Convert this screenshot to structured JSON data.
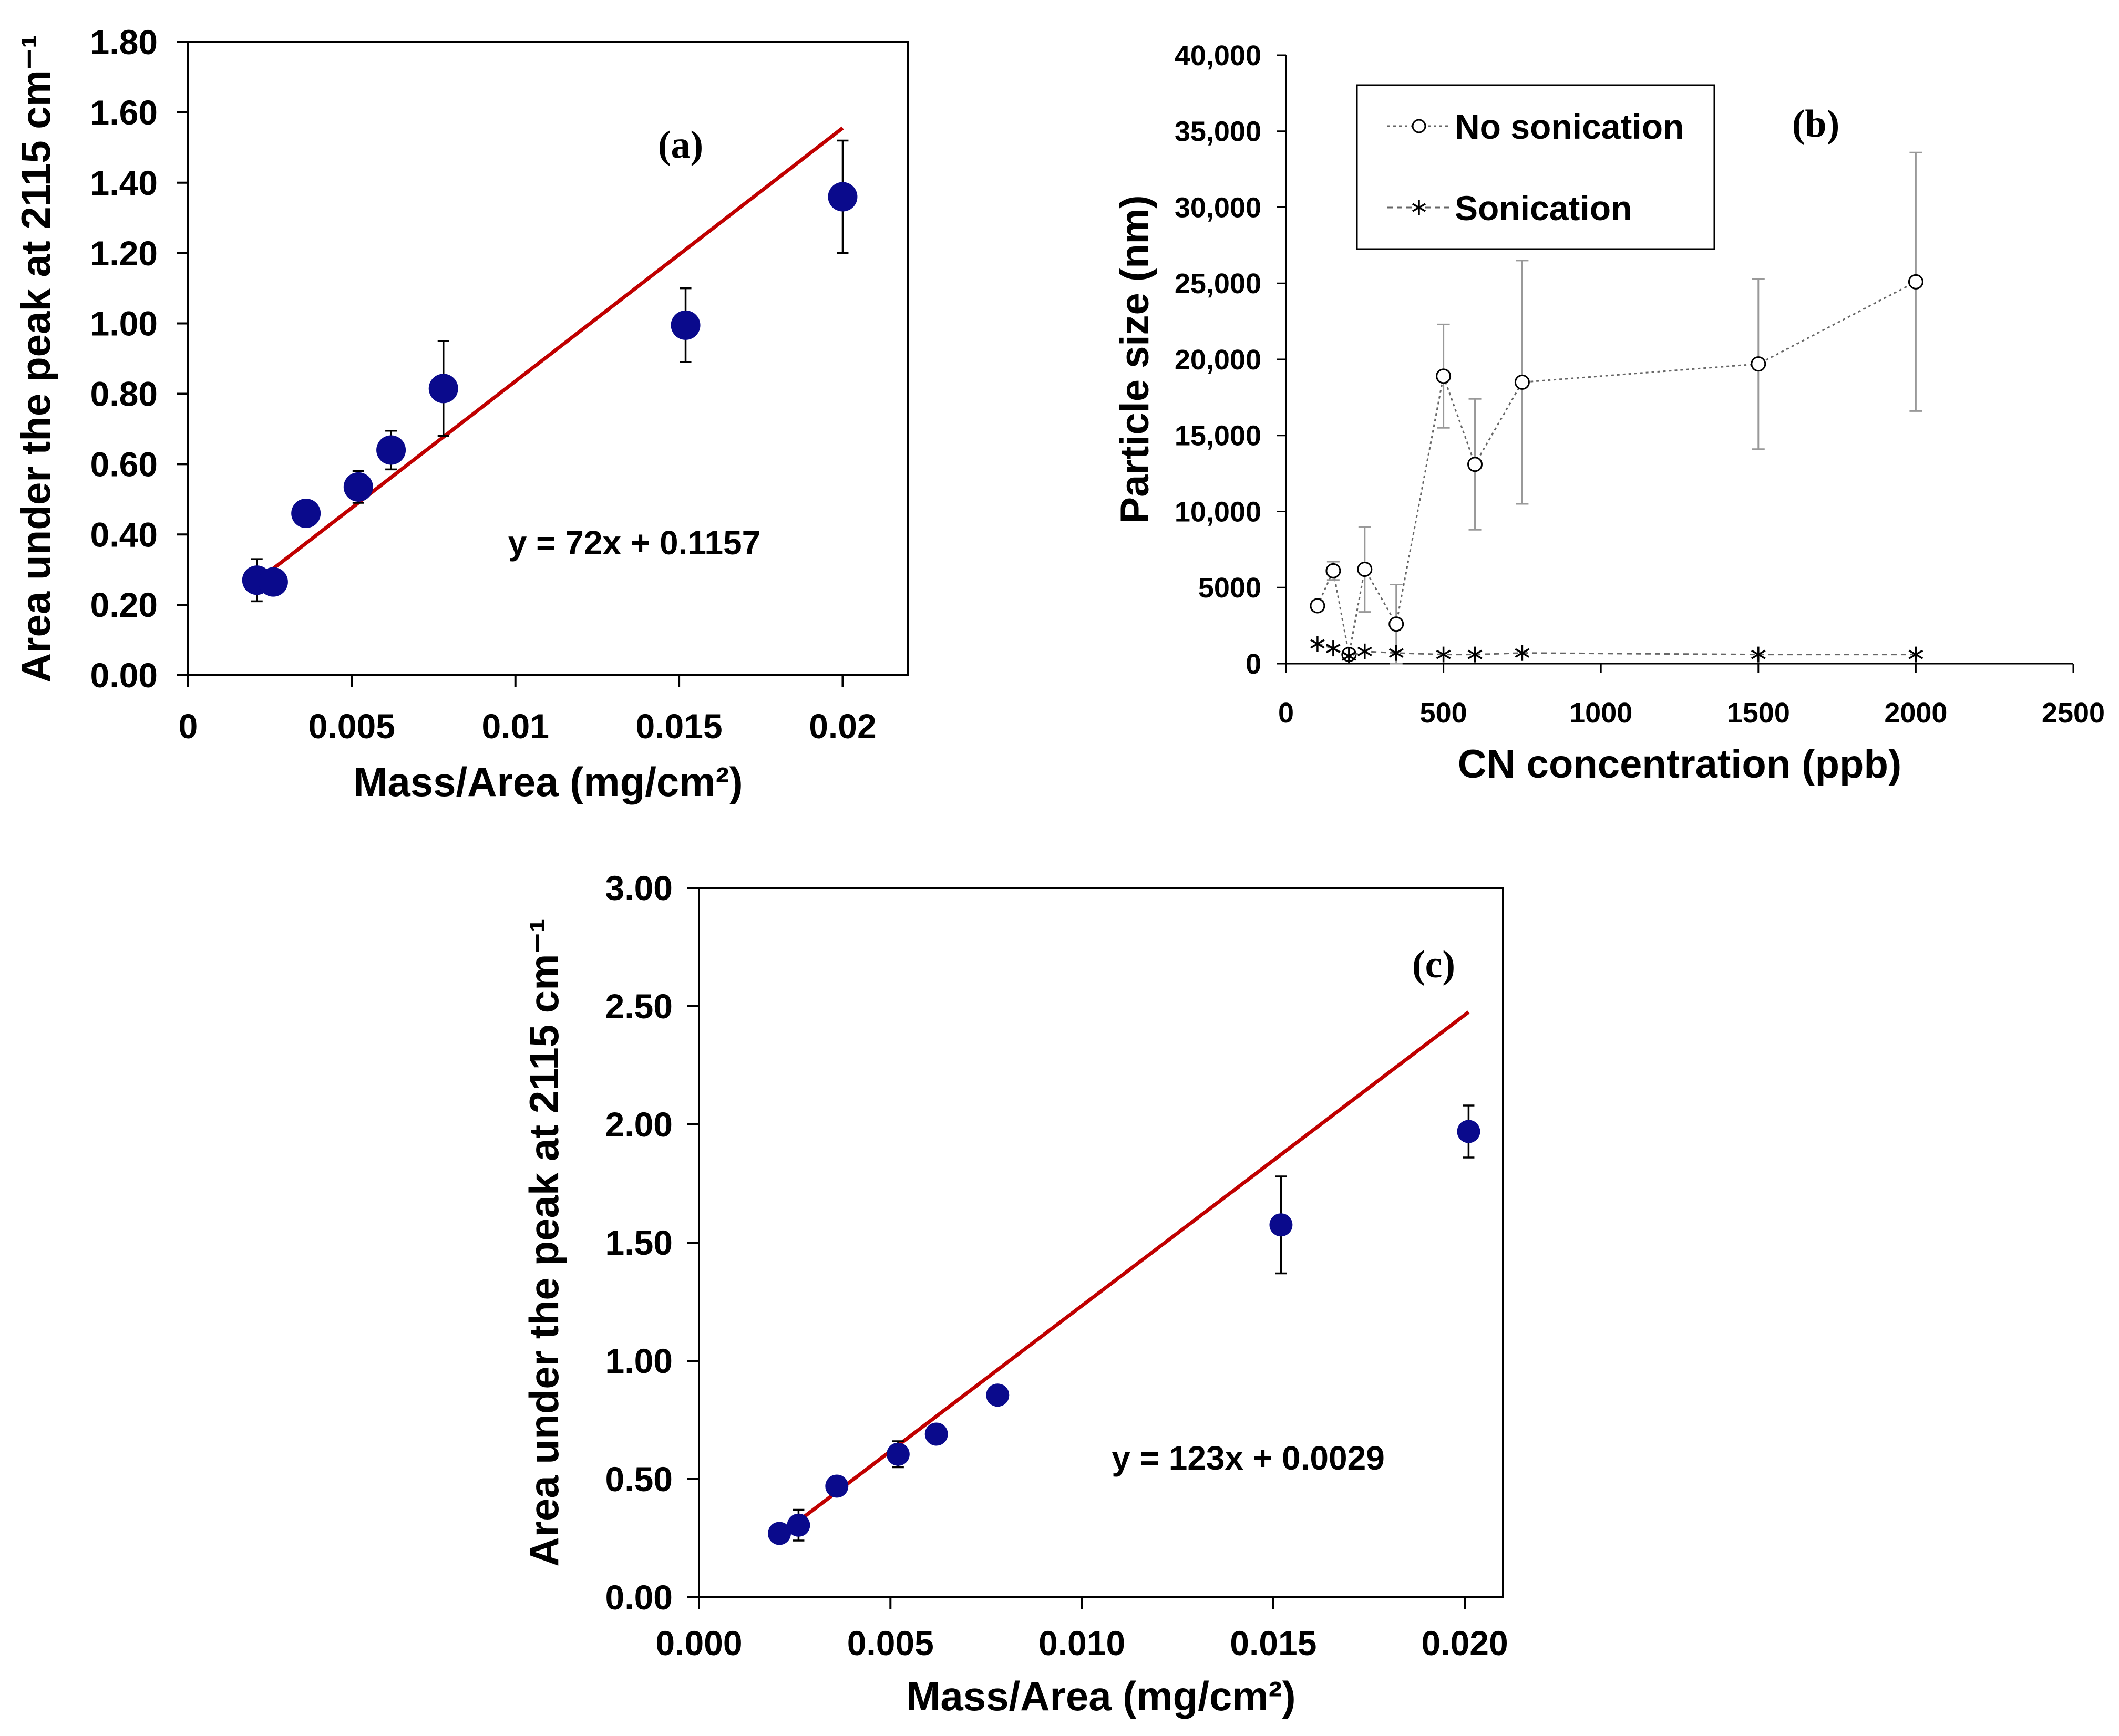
{
  "colors": {
    "marker": "#0a0a8c",
    "fit_line": "#c00000",
    "series_gray": "#666666",
    "axis": "#000000"
  },
  "chart_data": [
    {
      "id": "a",
      "type": "scatter",
      "panel_label": "(a)",
      "xlabel": "Mass/Area (mg/cm²)",
      "ylabel": "Area under the peak at 2115 cm⁻¹",
      "xlim": [
        0,
        0.022
      ],
      "ylim": [
        0,
        1.8
      ],
      "xticks": [
        0,
        0.005,
        0.01,
        0.015,
        0.02
      ],
      "xtick_labels": [
        "0",
        "0.005",
        "0.01",
        "0.015",
        "0.02"
      ],
      "yticks": [
        0,
        0.2,
        0.4,
        0.6,
        0.8,
        1.0,
        1.2,
        1.4,
        1.6,
        1.8
      ],
      "ytick_labels": [
        "0.00",
        "0.20",
        "0.40",
        "0.60",
        "0.80",
        "1.00",
        "1.20",
        "1.40",
        "1.60",
        "1.80"
      ],
      "points": [
        {
          "x": 0.0021,
          "y": 0.27,
          "err": 0.06
        },
        {
          "x": 0.0026,
          "y": 0.265,
          "err": 0.0
        },
        {
          "x": 0.0036,
          "y": 0.46,
          "err": 0.0
        },
        {
          "x": 0.0052,
          "y": 0.535,
          "err": 0.045
        },
        {
          "x": 0.0062,
          "y": 0.64,
          "err": 0.055
        },
        {
          "x": 0.0078,
          "y": 0.815,
          "err": 0.135
        },
        {
          "x": 0.0152,
          "y": 0.995,
          "err": 0.105
        },
        {
          "x": 0.02,
          "y": 1.36,
          "err": 0.16
        }
      ],
      "fit": {
        "slope": 72,
        "intercept": 0.1157,
        "x_range": [
          0.0021,
          0.02
        ],
        "equation": "y = 72x + 0.1157"
      }
    },
    {
      "id": "b",
      "type": "line",
      "panel_label": "(b)",
      "xlabel": "CN concentration (ppb)",
      "ylabel": "Particle size (nm)",
      "xlim": [
        0,
        2500
      ],
      "ylim": [
        0,
        40000
      ],
      "xticks": [
        0,
        500,
        1000,
        1500,
        2000,
        2500
      ],
      "xtick_labels": [
        "0",
        "500",
        "1000",
        "1500",
        "2000",
        "2500"
      ],
      "yticks": [
        0,
        5000,
        10000,
        15000,
        20000,
        25000,
        30000,
        35000,
        40000
      ],
      "ytick_labels": [
        "0",
        "5000",
        "10,000",
        "15,000",
        "20,000",
        "25,000",
        "30,000",
        "35,000",
        "40,000"
      ],
      "legend_position": "top-left",
      "series": [
        {
          "name": "No sonication",
          "marker": "circle",
          "x": [
            100,
            150,
            200,
            250,
            350,
            500,
            600,
            750,
            1500,
            2000
          ],
          "y": [
            3800,
            6100,
            600,
            6200,
            2600,
            18900,
            13100,
            18500,
            19700,
            25100
          ],
          "err": [
            300,
            600,
            200,
            2800,
            2600,
            3400,
            4300,
            8000,
            5600,
            8500
          ]
        },
        {
          "name": "Sonication",
          "marker": "star",
          "x": [
            100,
            150,
            200,
            250,
            350,
            500,
            600,
            750,
            1500,
            2000
          ],
          "y": [
            1300,
            1000,
            500,
            800,
            700,
            600,
            600,
            700,
            600,
            600
          ],
          "err": [
            0,
            0,
            0,
            0,
            0,
            0,
            0,
            0,
            0,
            0
          ]
        }
      ]
    },
    {
      "id": "c",
      "type": "scatter",
      "panel_label": "(c)",
      "xlabel": "Mass/Area (mg/cm²)",
      "ylabel": "Area under the peak at 2115 cm⁻¹",
      "xlim": [
        0,
        0.021
      ],
      "ylim": [
        0,
        3.0
      ],
      "xticks": [
        0,
        0.005,
        0.01,
        0.015,
        0.02
      ],
      "xtick_labels": [
        "0.000",
        "0.005",
        "0.010",
        "0.015",
        "0.020"
      ],
      "yticks": [
        0,
        0.5,
        1.0,
        1.5,
        2.0,
        2.5,
        3.0
      ],
      "ytick_labels": [
        "0.00",
        "0.50",
        "1.00",
        "1.50",
        "2.00",
        "2.50",
        "3.00"
      ],
      "points": [
        {
          "x": 0.0021,
          "y": 0.27,
          "err": 0.0
        },
        {
          "x": 0.0026,
          "y": 0.305,
          "err": 0.065
        },
        {
          "x": 0.0036,
          "y": 0.47,
          "err": 0.0
        },
        {
          "x": 0.0052,
          "y": 0.605,
          "err": 0.055
        },
        {
          "x": 0.0062,
          "y": 0.69,
          "err": 0.0
        },
        {
          "x": 0.0078,
          "y": 0.855,
          "err": 0.0
        },
        {
          "x": 0.0152,
          "y": 1.575,
          "err": 0.205
        },
        {
          "x": 0.0201,
          "y": 1.97,
          "err": 0.11
        }
      ],
      "fit": {
        "slope": 123,
        "intercept": 0.0029,
        "x_range": [
          0.0021,
          0.0201
        ],
        "equation": "y = 123x + 0.0029"
      }
    }
  ]
}
